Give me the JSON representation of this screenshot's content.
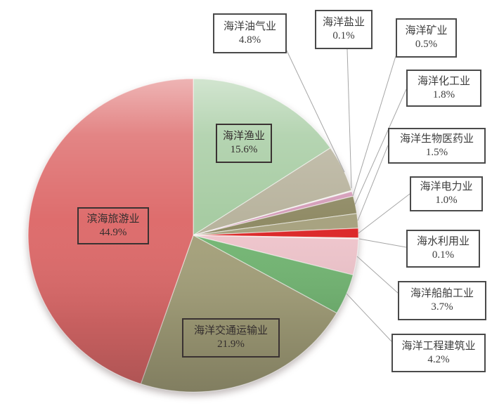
{
  "chart_data": {
    "type": "pie",
    "title": "",
    "background": "#ffffff",
    "start_angle_deg": 0,
    "direction": "clockwise",
    "label_style": "boxed, label + percent",
    "legend": "none",
    "leader_line_color": "#a6a6a6",
    "slices": [
      {
        "key": "fishery",
        "label": "海洋渔业",
        "value": 15.6,
        "pct_label": "15.6%",
        "color": "#a5cba1",
        "label_placement": "inside"
      },
      {
        "key": "oil-gas",
        "label": "海洋油气业",
        "value": 4.8,
        "pct_label": "4.8%",
        "color": "#b7b29c",
        "label_placement": "outside"
      },
      {
        "key": "salt",
        "label": "海洋盐业",
        "value": 0.1,
        "pct_label": "0.1%",
        "color": "#e4e9da",
        "label_placement": "outside"
      },
      {
        "key": "mining",
        "label": "海洋矿业",
        "value": 0.5,
        "pct_label": "0.5%",
        "color": "#d49cb8",
        "label_placement": "outside"
      },
      {
        "key": "chemical",
        "label": "海洋化工业",
        "value": 1.8,
        "pct_label": "1.8%",
        "color": "#8e8963",
        "label_placement": "outside"
      },
      {
        "key": "biomedicine",
        "label": "海洋生物医药业",
        "value": 1.5,
        "pct_label": "1.5%",
        "color": "#a6a17e",
        "label_placement": "outside"
      },
      {
        "key": "electric-power",
        "label": "海洋电力业",
        "value": 1.0,
        "pct_label": "1.0%",
        "color": "#dc2526",
        "label_placement": "outside"
      },
      {
        "key": "seawater-use",
        "label": "海水利用业",
        "value": 0.1,
        "pct_label": "0.1%",
        "color": "#dfeddd",
        "label_placement": "outside"
      },
      {
        "key": "shipbuilding",
        "label": "海洋船舶工业",
        "value": 3.7,
        "pct_label": "3.7%",
        "color": "#efc5cc",
        "label_placement": "outside"
      },
      {
        "key": "engineering-construction",
        "label": "海洋工程建筑业",
        "value": 4.2,
        "pct_label": "4.2%",
        "color": "#73b673",
        "label_placement": "outside"
      },
      {
        "key": "transportation",
        "label": "海洋交通运输业",
        "value": 21.9,
        "pct_label": "21.9%",
        "color": "#a5a17b",
        "label_placement": "inside"
      },
      {
        "key": "coastal-tourism",
        "label": "滨海旅游业",
        "value": 44.9,
        "pct_label": "44.9%",
        "color": "#dd6a6a",
        "label_placement": "inside"
      }
    ]
  }
}
